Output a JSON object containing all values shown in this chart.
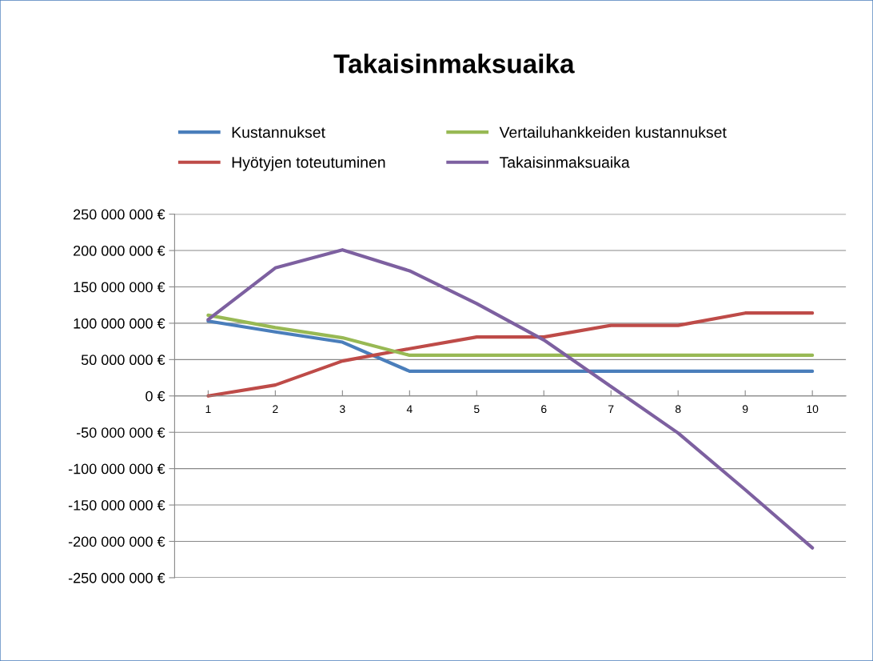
{
  "chart_data": {
    "type": "line",
    "title": "Takaisinmaksuaika",
    "categories": [
      "1",
      "2",
      "3",
      "4",
      "5",
      "6",
      "7",
      "8",
      "9",
      "10"
    ],
    "series": [
      {
        "name": "Kustannukset",
        "color": "#4a7ebb",
        "values": [
          103000000,
          88000000,
          74000000,
          34000000,
          34000000,
          34000000,
          34000000,
          34000000,
          34000000,
          34000000
        ]
      },
      {
        "name": "Hyötyjen toteutuminen",
        "color": "#be4b48",
        "values": [
          0,
          15000000,
          48000000,
          65000000,
          81000000,
          81000000,
          97000000,
          97000000,
          114000000,
          114000000
        ]
      },
      {
        "name": "Vertailuhankkeiden kustannukset",
        "color": "#98b954",
        "values": [
          111000000,
          94000000,
          80000000,
          56000000,
          56000000,
          56000000,
          56000000,
          56000000,
          56000000,
          56000000
        ]
      },
      {
        "name": "Takaisinmaksuaika",
        "color": "#7d60a0",
        "values": [
          105000000,
          176000000,
          201000000,
          172000000,
          127000000,
          77000000,
          13000000,
          -51000000,
          -129000000,
          -209000000
        ]
      }
    ],
    "ylim": [
      -250000000,
      250000000
    ],
    "yticks": [
      {
        "value": -250000000,
        "label": "-250 000 000 €"
      },
      {
        "value": -200000000,
        "label": "-200 000 000 €"
      },
      {
        "value": -150000000,
        "label": "-150 000 000 €"
      },
      {
        "value": -100000000,
        "label": "-100 000 000 €"
      },
      {
        "value": -50000000,
        "label": "-50 000 000 €"
      },
      {
        "value": 0,
        "label": "0 €"
      },
      {
        "value": 50000000,
        "label": "50 000 000 €"
      },
      {
        "value": 100000000,
        "label": "100 000 000 €"
      },
      {
        "value": 150000000,
        "label": "150 000 000 €"
      },
      {
        "value": 200000000,
        "label": "200 000 000 €"
      },
      {
        "value": 250000000,
        "label": "250 000 000 €"
      }
    ],
    "grid": "y",
    "legend": "top",
    "marker": "none",
    "line_style": "solid"
  }
}
